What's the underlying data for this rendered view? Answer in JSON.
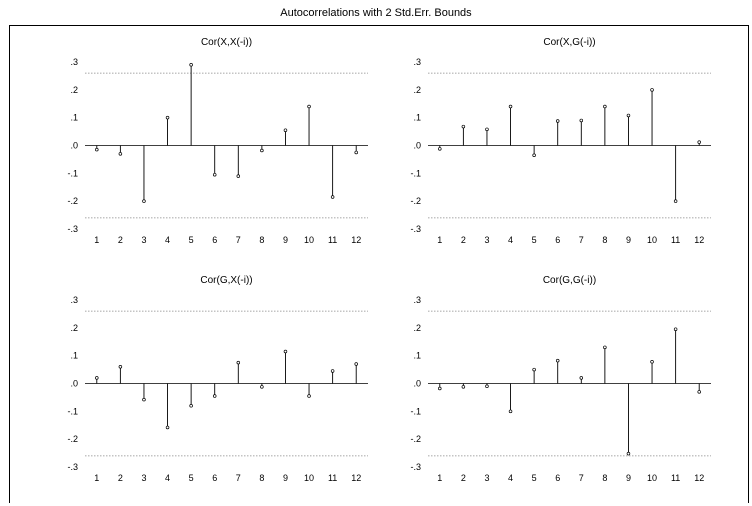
{
  "title": "Autocorrelations with 2 Std.Err. Bounds",
  "chart_data": [
    {
      "type": "stem",
      "title": "Cor(X,X(-i))",
      "x": [
        1,
        2,
        3,
        4,
        5,
        6,
        7,
        8,
        9,
        10,
        11,
        12
      ],
      "values": [
        -0.015,
        -0.03,
        -0.2,
        0.1,
        0.29,
        -0.105,
        -0.11,
        -0.018,
        0.055,
        0.14,
        -0.185,
        -0.025
      ],
      "ylim": [
        -0.3,
        0.3
      ],
      "yticks": [
        ".3",
        ".2",
        ".1",
        ".0",
        "-.1",
        "-.2",
        "-.3"
      ],
      "bound": 0.26
    },
    {
      "type": "stem",
      "title": "Cor(X,G(-i))",
      "x": [
        1,
        2,
        3,
        4,
        5,
        6,
        7,
        8,
        9,
        10,
        11,
        12
      ],
      "values": [
        -0.012,
        0.068,
        0.058,
        0.14,
        -0.035,
        0.088,
        0.09,
        0.14,
        0.108,
        0.2,
        -0.2,
        0.012
      ],
      "ylim": [
        -0.3,
        0.3
      ],
      "yticks": [
        ".3",
        ".2",
        ".1",
        ".0",
        "-.1",
        "-.2",
        "-.3"
      ],
      "bound": 0.26
    },
    {
      "type": "stem",
      "title": "Cor(G,X(-i))",
      "x": [
        1,
        2,
        3,
        4,
        5,
        6,
        7,
        8,
        9,
        10,
        11,
        12
      ],
      "values": [
        0.02,
        0.06,
        -0.058,
        -0.158,
        -0.08,
        -0.045,
        0.075,
        -0.012,
        0.115,
        -0.045,
        0.045,
        0.07
      ],
      "ylim": [
        -0.3,
        0.3
      ],
      "yticks": [
        ".3",
        ".2",
        ".1",
        ".0",
        "-.1",
        "-.2",
        "-.3"
      ],
      "bound": 0.26
    },
    {
      "type": "stem",
      "title": "Cor(G,G(-i))",
      "x": [
        1,
        2,
        3,
        4,
        5,
        6,
        7,
        8,
        9,
        10,
        11,
        12
      ],
      "values": [
        -0.018,
        -0.012,
        -0.01,
        -0.1,
        0.05,
        0.082,
        0.02,
        0.13,
        -0.252,
        0.078,
        0.195,
        -0.03
      ],
      "ylim": [
        -0.3,
        0.3
      ],
      "yticks": [
        ".3",
        ".2",
        ".1",
        ".0",
        "-.1",
        "-.2",
        "-.3"
      ],
      "bound": 0.26
    }
  ]
}
